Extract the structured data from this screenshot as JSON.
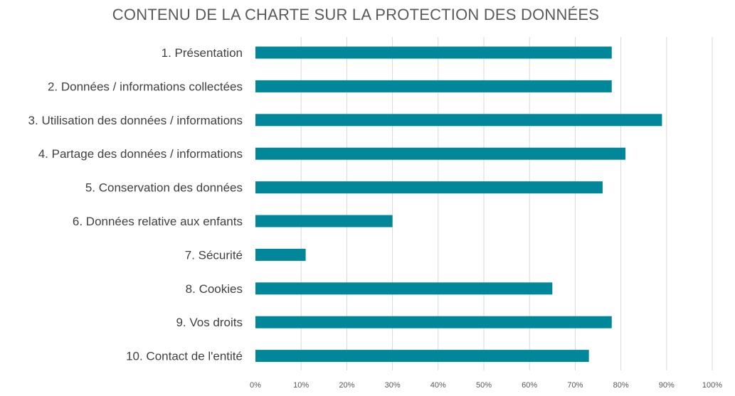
{
  "chart_data": {
    "type": "bar",
    "orientation": "horizontal",
    "title": "CONTENU DE LA CHARTE SUR LA PROTECTION DES DONNÉES",
    "categories": [
      "1. Présentation",
      "2. Données / informations collectées",
      "3. Utilisation des données / informations",
      "4. Partage des données / informations",
      "5. Conservation des données",
      "6. Données relative aux enfants",
      "7. Sécurité",
      "8. Cookies",
      "9. Vos droits",
      "10. Contact de l'entité"
    ],
    "values": [
      78,
      78,
      89,
      81,
      76,
      30,
      11,
      65,
      78,
      73
    ],
    "xlim": [
      0,
      100
    ],
    "x_ticks": [
      0,
      10,
      20,
      30,
      40,
      50,
      60,
      70,
      80,
      90,
      100
    ],
    "tick_format": "{v}%",
    "grid": true,
    "legend": "none",
    "bar_color": "#00879A"
  }
}
